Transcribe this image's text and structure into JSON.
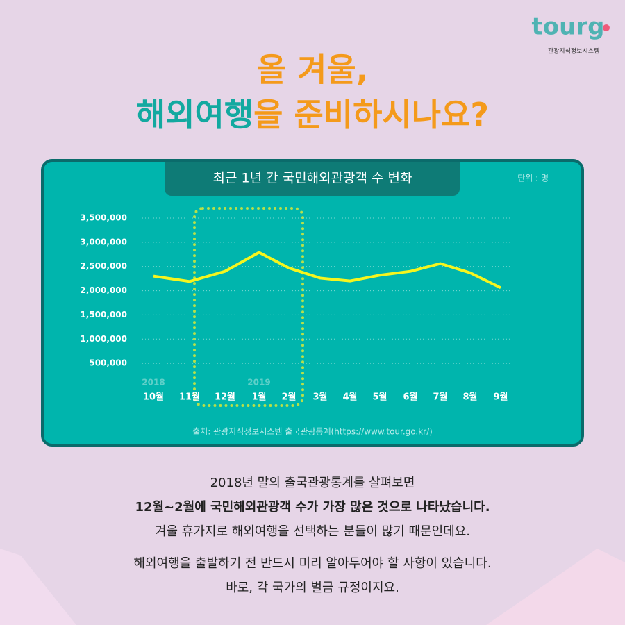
{
  "logo": {
    "text": "tourg",
    "subtitle": "관광지식정보시스템"
  },
  "headline": {
    "line1": "올 겨울,",
    "line2_highlight": "해외여행",
    "line2_rest": "을 준비하시나요?"
  },
  "chart_data": {
    "type": "line",
    "title": "최근 1년 간 국민해외관광객 수 변화",
    "unit_label": "단위 : 명",
    "categories": [
      "10월",
      "11월",
      "12월",
      "1월",
      "2월",
      "3월",
      "4월",
      "5월",
      "6월",
      "7월",
      "8월",
      "9월"
    ],
    "year_labels": [
      "2018",
      null,
      null,
      "2019",
      null,
      null,
      null,
      null,
      null,
      null,
      null,
      null
    ],
    "values": [
      2300000,
      2190000,
      2400000,
      2790000,
      2470000,
      2260000,
      2200000,
      2320000,
      2400000,
      2560000,
      2370000,
      2060000
    ],
    "color": "#f5f51e",
    "ylim": [
      0,
      3500000
    ],
    "yticks": [
      {
        "value": 500000,
        "label": "500,000"
      },
      {
        "value": 1000000,
        "label": "1,000,000"
      },
      {
        "value": 1500000,
        "label": "1,500,000"
      },
      {
        "value": 2000000,
        "label": "2,000,000"
      },
      {
        "value": 2500000,
        "label": "2,500,000"
      },
      {
        "value": 3000000,
        "label": "3,000,000"
      },
      {
        "value": 3500000,
        "label": "3,500,000"
      }
    ],
    "grid": true,
    "source": "출처: 관광지식정보시스템 출국관광통계(https://www.tour.go.kr/)"
  },
  "body": [
    {
      "text": "2018년 말의 출국관광통계를 살펴보면",
      "weight": "normal"
    },
    {
      "text": "12월~2월에 국민해외관광객 수가 가장 많은 것으로 나타났습니다.",
      "weight": "bold"
    },
    {
      "text": "겨울 휴가지로 해외여행을 선택하는 분들이 많기 때문인데요.",
      "weight": "normal"
    },
    {
      "text": "해외여행을 출발하기 전 반드시 미리 알아두어야 할 사항이 있습니다.",
      "weight": "normal"
    },
    {
      "text": "바로, 각 국가의 벌금 규정이지요.",
      "weight": "normal"
    }
  ]
}
